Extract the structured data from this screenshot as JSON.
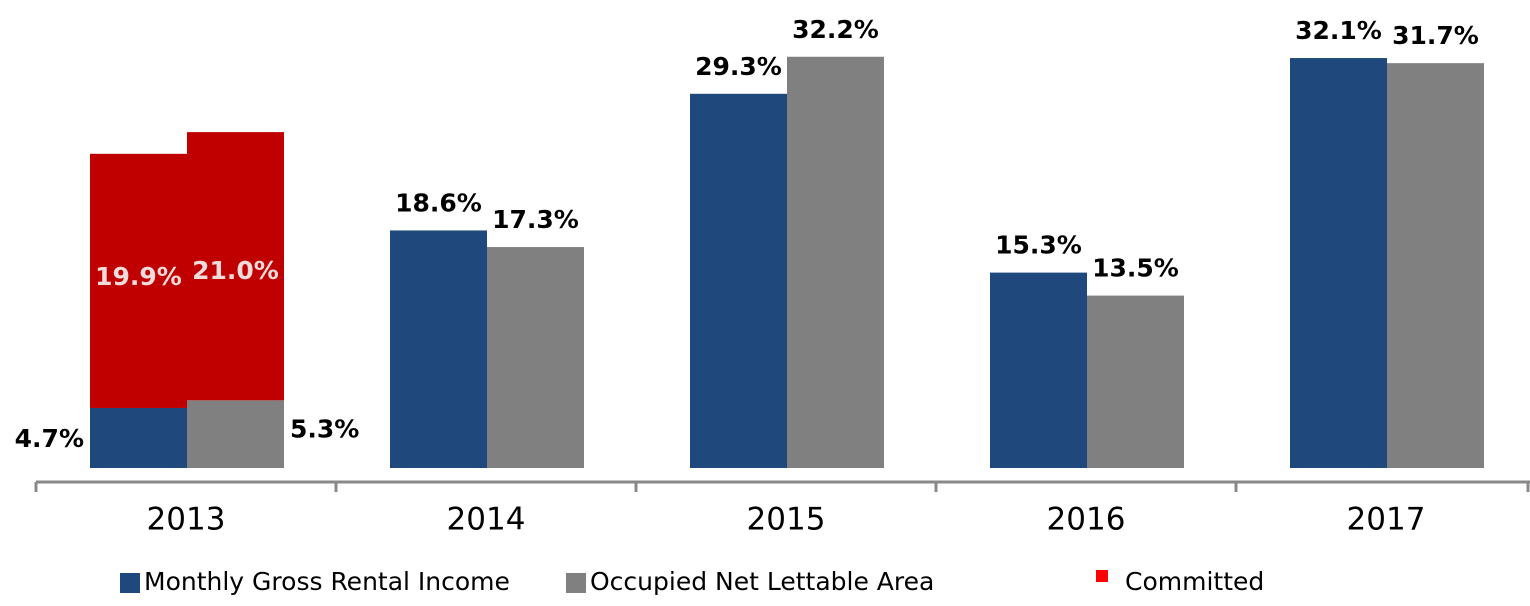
{
  "chart_data": {
    "type": "bar",
    "categories": [
      "2013",
      "2014",
      "2015",
      "2016",
      "2017"
    ],
    "series": [
      {
        "name": "Monthly Gross Rental Income",
        "color": "#1f497d",
        "values": [
          4.7,
          18.6,
          29.3,
          15.3,
          32.1
        ],
        "value_labels": [
          "4.7%",
          "18.6%",
          "29.3%",
          "15.3%",
          "32.1%"
        ]
      },
      {
        "name": "Occupied Net Lettable Area",
        "color": "#808080",
        "values": [
          5.3,
          17.3,
          32.2,
          13.5,
          31.7
        ],
        "value_labels": [
          "5.3%",
          "17.3%",
          "32.2%",
          "13.5%",
          "31.7%"
        ]
      },
      {
        "name": "Committed",
        "color": "#c00000",
        "legend_color": "#ff0000",
        "values": [
          [
            19.9,
            21.0
          ],
          null,
          null,
          null,
          null
        ],
        "value_labels": [
          [
            "19.9%",
            "21.0%"
          ],
          null,
          null,
          null,
          null
        ]
      }
    ],
    "ylim": [
      0,
      35
    ]
  }
}
